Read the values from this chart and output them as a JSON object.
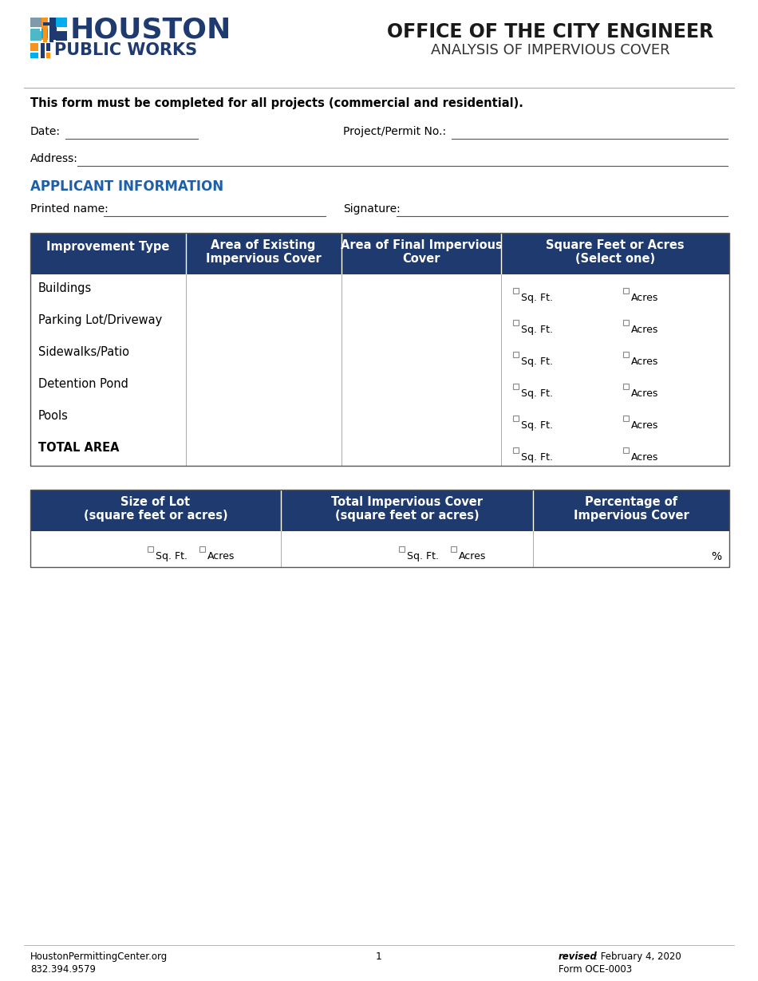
{
  "page_bg": "#ffffff",
  "header_bg": "#1e3a6e",
  "dark_navy": "#1e3a6e",
  "cyan_color": "#00aeef",
  "teal_color": "#4db8c8",
  "orange_color": "#f7941d",
  "gray_color": "#7f9aaa",
  "applicant_info_color": "#1e5fa8",
  "title_line1": "OFFICE OF THE CITY ENGINEER",
  "title_line2": "ANALYSIS OF IMPERVIOUS COVER",
  "form_note": "This form must be completed for all projects (commercial and residential).",
  "applicant_section": "APPLICANT INFORMATION",
  "table1_rows": [
    "Buildings",
    "Parking Lot/Driveway",
    "Sidewalks/Patio",
    "Detention Pond",
    "Pools",
    "TOTAL AREA"
  ],
  "footer_left1": "HoustonPermittingCenter.org",
  "footer_left2": "832.394.9579",
  "footer_center": "1",
  "footer_right1": "revised",
  "footer_right1b": ": February 4, 2020",
  "footer_right2": "Form OCE-0003"
}
